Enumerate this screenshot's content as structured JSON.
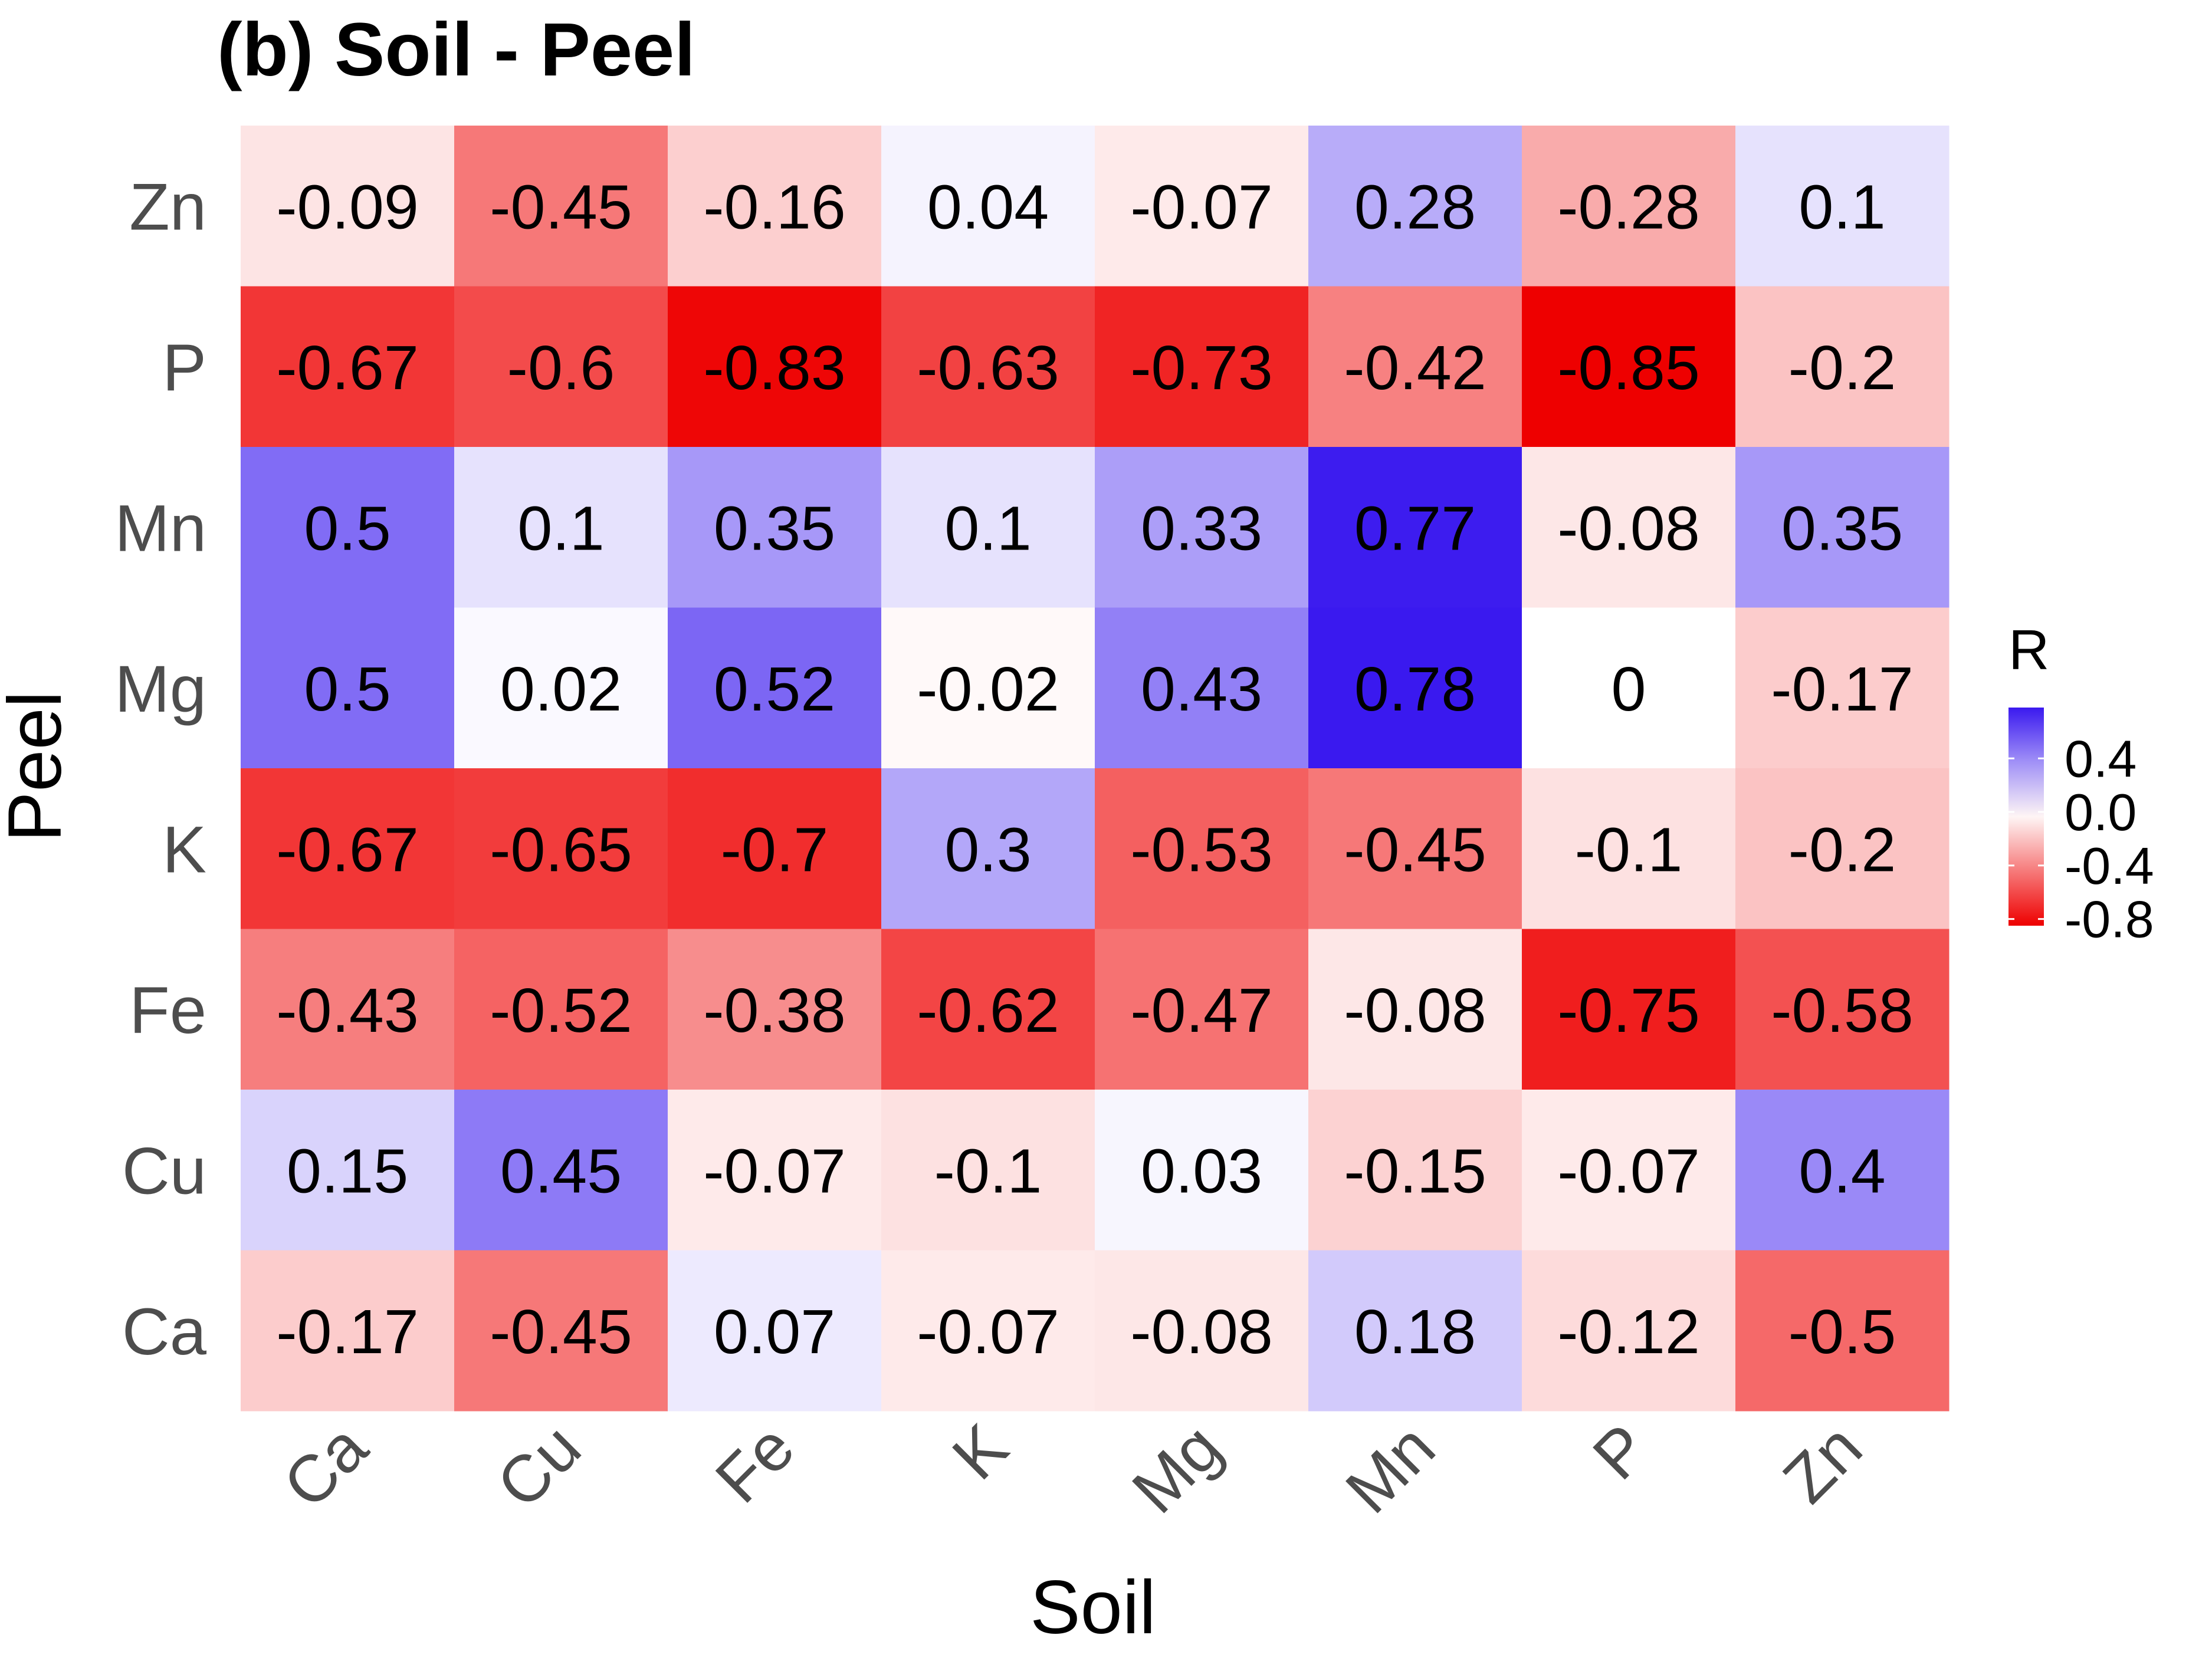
{
  "chart_data": {
    "type": "heatmap",
    "title": "(b) Soil - Peel",
    "xlabel": "Soil",
    "ylabel": "Peel",
    "x_categories": [
      "Ca",
      "Cu",
      "Fe",
      "K",
      "Mg",
      "Mn",
      "P",
      "Zn"
    ],
    "y_categories_top_to_bottom": [
      "Zn",
      "P",
      "Mn",
      "Mg",
      "K",
      "Fe",
      "Cu",
      "Ca"
    ],
    "values": [
      [
        "-0.09",
        "-0.45",
        "-0.16",
        "0.04",
        "-0.07",
        "0.28",
        "-0.28",
        "0.1"
      ],
      [
        "-0.67",
        "-0.6",
        "-0.83",
        "-0.63",
        "-0.73",
        "-0.42",
        "-0.85",
        "-0.2"
      ],
      [
        "0.5",
        "0.1",
        "0.35",
        "0.1",
        "0.33",
        "0.77",
        "-0.08",
        "0.35"
      ],
      [
        "0.5",
        "0.02",
        "0.52",
        "-0.02",
        "0.43",
        "0.78",
        "0",
        "-0.17"
      ],
      [
        "-0.67",
        "-0.65",
        "-0.7",
        "0.3",
        "-0.53",
        "-0.45",
        "-0.1",
        "-0.2"
      ],
      [
        "-0.43",
        "-0.52",
        "-0.38",
        "-0.62",
        "-0.47",
        "-0.08",
        "-0.75",
        "-0.58"
      ],
      [
        "0.15",
        "0.45",
        "-0.07",
        "-0.1",
        "0.03",
        "-0.15",
        "-0.07",
        "0.4"
      ],
      [
        "-0.17",
        "-0.45",
        "0.07",
        "-0.07",
        "-0.08",
        "0.18",
        "-0.12",
        "-0.5"
      ]
    ],
    "colorscale": {
      "low": "#ee0000",
      "mid": "#ffffff",
      "high": "#3a19ef",
      "limits": [
        -0.85,
        0.78
      ]
    },
    "legend": {
      "title": "R",
      "breaks": [
        "0.4",
        "0.0",
        "-0.4",
        "-0.8"
      ],
      "position": "right"
    }
  }
}
